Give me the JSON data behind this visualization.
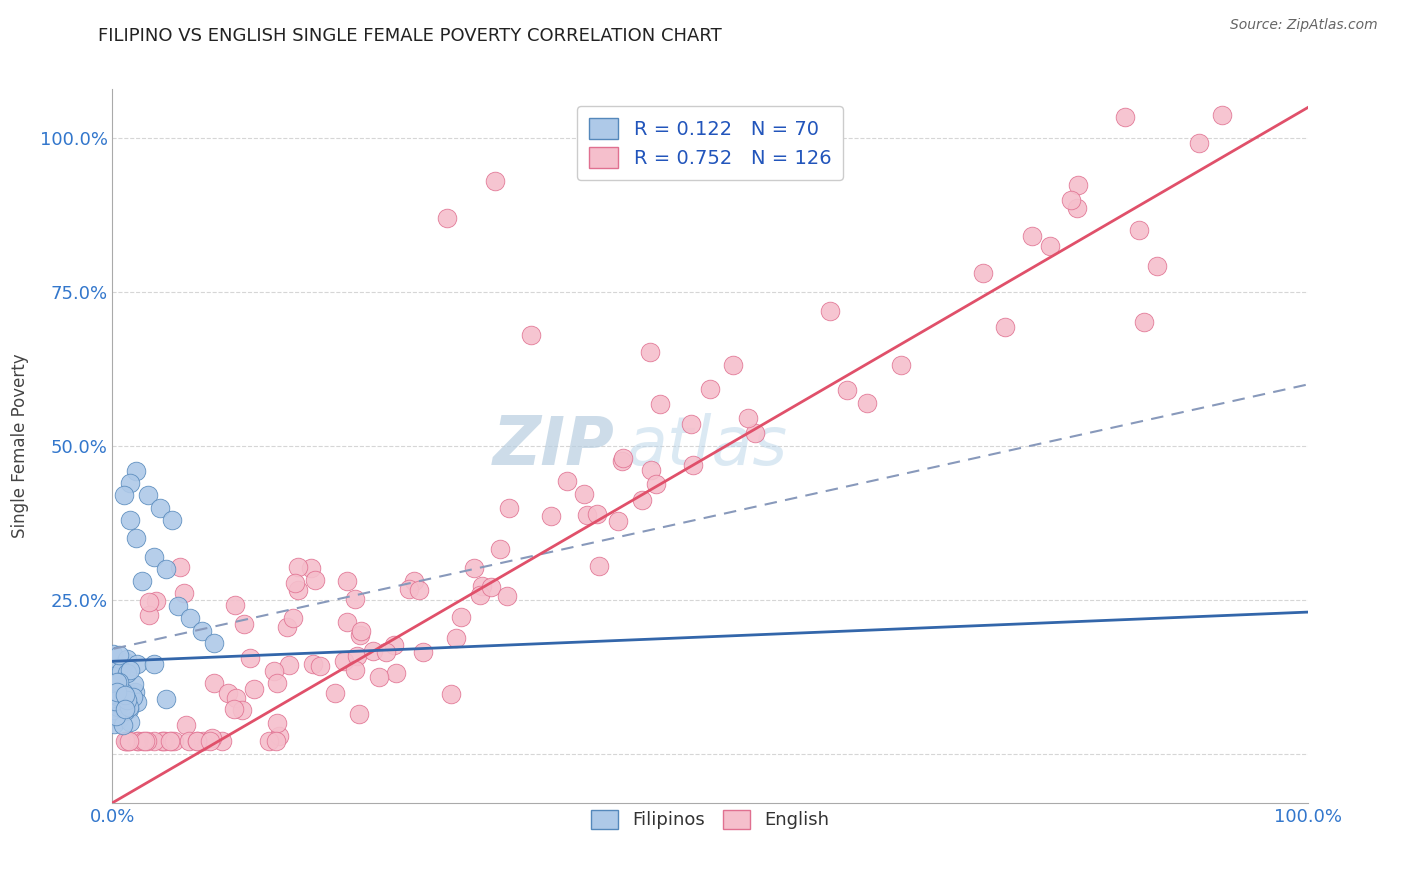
{
  "title": "FILIPINO VS ENGLISH SINGLE FEMALE POVERTY CORRELATION CHART",
  "source": "Source: ZipAtlas.com",
  "ylabel": "Single Female Poverty",
  "xlim": [
    0.0,
    1.0
  ],
  "ylim": [
    -0.08,
    1.08
  ],
  "x_ticks": [
    0.0,
    0.25,
    0.5,
    0.75,
    1.0
  ],
  "x_tick_labels": [
    "0.0%",
    "",
    "",
    "",
    "100.0%"
  ],
  "y_ticks": [
    0.0,
    0.25,
    0.5,
    0.75,
    1.0
  ],
  "y_tick_labels": [
    "",
    "25.0%",
    "50.0%",
    "75.0%",
    "100.0%"
  ],
  "filipino_color": "#aec9e8",
  "filipino_edge_color": "#5588bb",
  "english_color": "#f5bfcc",
  "english_edge_color": "#e07090",
  "trend_filipino_color": "#3366aa",
  "trend_english_color": "#e0506a",
  "trend_dashed_color": "#8899bb",
  "R_filipino": 0.122,
  "N_filipino": 70,
  "R_english": 0.752,
  "N_english": 126,
  "watermark_zip": "ZIP",
  "watermark_atlas": "atlas",
  "legend_label_filipino": "Filipinos",
  "legend_label_english": "English"
}
